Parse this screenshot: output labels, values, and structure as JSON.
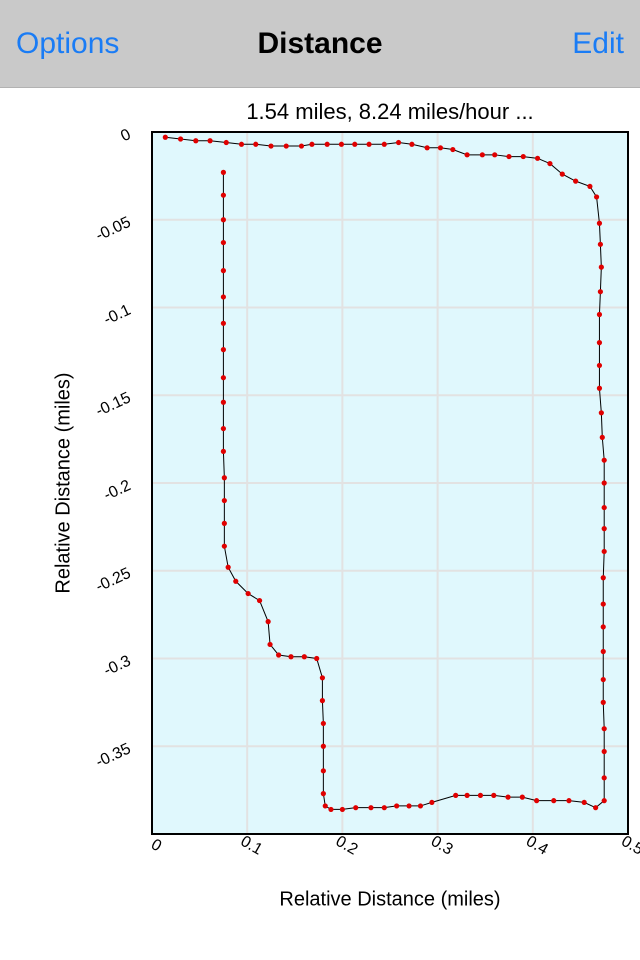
{
  "nav": {
    "left_button": "Options",
    "title": "Distance",
    "right_button": "Edit"
  },
  "chart_data": {
    "type": "scatter-line",
    "title": "1.54 miles, 8.24 miles/hour ...",
    "x_label": "Relative Distance (miles)",
    "y_label": "Relative Distance (miles)",
    "xlim": [
      0,
      0.5
    ],
    "xticks": [
      0,
      0.1,
      0.2,
      0.3,
      0.4,
      0.5
    ],
    "ylim": [
      -0.4,
      0
    ],
    "yticks": [
      0,
      -0.05,
      -0.1,
      -0.15,
      -0.2,
      -0.25,
      -0.3,
      -0.35
    ],
    "grid": true,
    "background": "#e0f8fd",
    "series": [
      {
        "color": "#e00000",
        "line_color": "#000000",
        "x": [
          0.014,
          0.03,
          0.046,
          0.061,
          0.078,
          0.094,
          0.109,
          0.125,
          0.141,
          0.157,
          0.168,
          0.184,
          0.199,
          0.213,
          0.228,
          0.244,
          0.259,
          0.273,
          0.289,
          0.303,
          0.316,
          0.331,
          0.347,
          0.36,
          0.375,
          0.39,
          0.405,
          0.418,
          0.431,
          0.445,
          0.46,
          0.467,
          0.47,
          0.471,
          0.472,
          0.471,
          0.47,
          0.47,
          0.47,
          0.47,
          0.472,
          0.473,
          0.475,
          0.475,
          0.475,
          0.475,
          0.475,
          0.474,
          0.474,
          0.474,
          0.474,
          0.474,
          0.474,
          0.475,
          0.475,
          0.475,
          0.475,
          0.466,
          0.454,
          0.438,
          0.422,
          0.404,
          0.389,
          0.374,
          0.359,
          0.345,
          0.331,
          0.319,
          0.294,
          0.282,
          0.27,
          0.257,
          0.244,
          0.23,
          0.214,
          0.2,
          0.188,
          0.182,
          0.18,
          0.18,
          0.18,
          0.18,
          0.179,
          0.179,
          0.173,
          0.16,
          0.146,
          0.133,
          0.124,
          0.122,
          0.113,
          0.101,
          0.088,
          0.08,
          0.076,
          0.076,
          0.076,
          0.076,
          0.075,
          0.075,
          0.075,
          0.075,
          0.075,
          0.075,
          0.075,
          0.075,
          0.075,
          0.075,
          0.075,
          0.075
        ],
        "values": [
          -0.003,
          -0.004,
          -0.005,
          -0.005,
          -0.006,
          -0.007,
          -0.007,
          -0.008,
          -0.008,
          -0.008,
          -0.007,
          -0.007,
          -0.007,
          -0.007,
          -0.007,
          -0.007,
          -0.006,
          -0.007,
          -0.009,
          -0.009,
          -0.01,
          -0.013,
          -0.013,
          -0.013,
          -0.014,
          -0.014,
          -0.015,
          -0.018,
          -0.024,
          -0.028,
          -0.031,
          -0.037,
          -0.052,
          -0.064,
          -0.077,
          -0.091,
          -0.104,
          -0.12,
          -0.133,
          -0.146,
          -0.16,
          -0.174,
          -0.187,
          -0.2,
          -0.214,
          -0.226,
          -0.239,
          -0.254,
          -0.269,
          -0.282,
          -0.296,
          -0.312,
          -0.325,
          -0.34,
          -0.353,
          -0.368,
          -0.381,
          -0.385,
          -0.382,
          -0.381,
          -0.381,
          -0.381,
          -0.379,
          -0.379,
          -0.378,
          -0.378,
          -0.378,
          -0.378,
          -0.382,
          -0.384,
          -0.384,
          -0.384,
          -0.385,
          -0.385,
          -0.385,
          -0.386,
          -0.386,
          -0.384,
          -0.377,
          -0.364,
          -0.35,
          -0.337,
          -0.324,
          -0.311,
          -0.3,
          -0.299,
          -0.299,
          -0.298,
          -0.292,
          -0.279,
          -0.267,
          -0.263,
          -0.256,
          -0.248,
          -0.236,
          -0.223,
          -0.21,
          -0.197,
          -0.182,
          -0.169,
          -0.154,
          -0.14,
          -0.124,
          -0.109,
          -0.094,
          -0.079,
          -0.063,
          -0.05,
          -0.036,
          -0.023
        ]
      }
    ]
  }
}
